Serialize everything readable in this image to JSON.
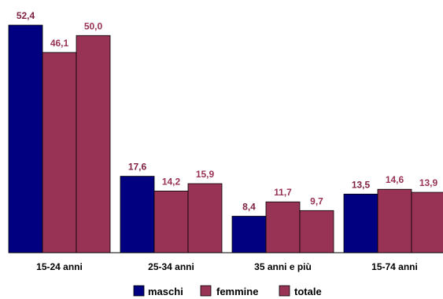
{
  "chart_data": {
    "type": "bar",
    "categories": [
      "15-24 anni",
      "25-34 anni",
      "35 anni e più",
      "15-74 anni"
    ],
    "series": [
      {
        "name": "maschi",
        "color": "#000080",
        "label_color": "#7f1f3f",
        "values": [
          52.4,
          17.6,
          8.4,
          13.5
        ],
        "labels": [
          "52,4",
          "17,6",
          "8,4",
          "13,5"
        ]
      },
      {
        "name": "femmine",
        "color": "#993355",
        "label_color": "#993355",
        "values": [
          46.1,
          14.2,
          11.7,
          14.6
        ],
        "labels": [
          "46,1",
          "14,2",
          "11,7",
          "14,6"
        ]
      },
      {
        "name": "totale",
        "color": "#993355",
        "label_color": "#993355",
        "values": [
          50.0,
          15.9,
          9.7,
          13.9
        ],
        "labels": [
          "50,0",
          "15,9",
          "9,7",
          "13,9"
        ]
      }
    ],
    "title": "",
    "xlabel": "",
    "ylabel": "",
    "ylim": [
      0,
      55
    ],
    "grid": false,
    "legend": "bottom"
  }
}
